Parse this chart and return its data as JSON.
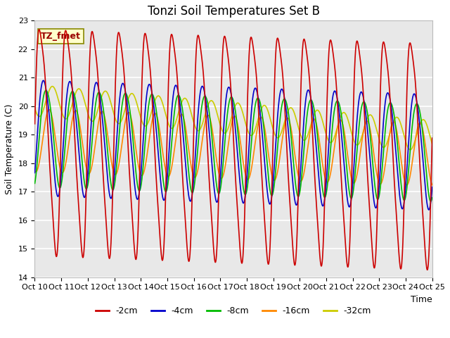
{
  "title": "Tonzi Soil Temperatures Set B",
  "xlabel": "Time",
  "ylabel": "Soil Temperature (C)",
  "annotation": "TZ_fmet",
  "ylim": [
    14.0,
    23.0
  ],
  "xlim": [
    0,
    360
  ],
  "yticks": [
    14.0,
    15.0,
    16.0,
    17.0,
    18.0,
    19.0,
    20.0,
    21.0,
    22.0,
    23.0
  ],
  "xtick_labels": [
    "Oct 10",
    "Oct 11",
    "Oct 12",
    "Oct 13",
    "Oct 14",
    "Oct 15",
    "Oct 16",
    "Oct 17",
    "Oct 18",
    "Oct 19",
    "Oct 20",
    "Oct 21",
    "Oct 22",
    "Oct 23",
    "Oct 24",
    "Oct 25"
  ],
  "colors": {
    "-2cm": "#cc0000",
    "-4cm": "#0000cc",
    "-8cm": "#00bb00",
    "-16cm": "#ff8800",
    "-32cm": "#cccc00"
  },
  "legend_labels": [
    "-2cm",
    "-4cm",
    "-8cm",
    "-16cm",
    "-32cm"
  ],
  "plot_bg_color": "#e8e8e8",
  "title_fontsize": 12,
  "axis_label_fontsize": 9,
  "tick_fontsize": 8
}
